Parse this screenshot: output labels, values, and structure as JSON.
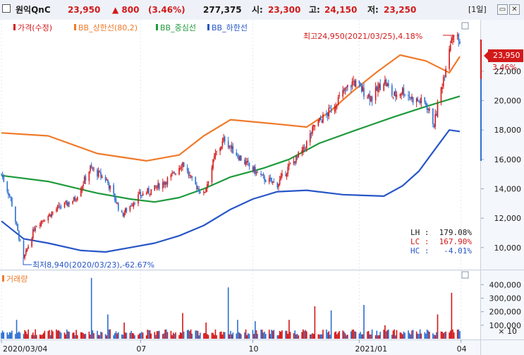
{
  "header": {
    "name": "원익QnC",
    "price": "23,950",
    "change": "▲ 800",
    "pct": "(3.46%)",
    "volume": "277,375",
    "open_label": "시:",
    "open": "23,300",
    "high_label": "고:",
    "high": "24,150",
    "low_label": "저:",
    "low": "23,250",
    "period": "[1일]",
    "colors": {
      "up": "#d3191a",
      "text": "#1a1a1a",
      "low": "#1a5bb5"
    }
  },
  "legend": {
    "price": "가격(수정)",
    "upper": "BB_상한선(80,2)",
    "middle": "BB_중심선",
    "lower": "BB_하한선",
    "volume": "거래량"
  },
  "annotations": {
    "high": "최고24,950(2021/03/25),4.18%",
    "low": "최저8,940(2020/03/23),-62.67%",
    "lh_label": "LH :",
    "lh_value": "179.08%",
    "lc_label": "LC :",
    "lc_value": "167.90%",
    "hc_label": "HC :",
    "hc_value": "-4.01%",
    "current_price": "23,950",
    "current_pct": "3.46%",
    "vol_unit": "× 10"
  },
  "chart_data": [
    {
      "type": "line",
      "title": "",
      "series_names": [
        "가격(수정)",
        "BB_상한선(80,2)",
        "BB_중심선",
        "BB_하한선"
      ],
      "series_colors": {
        "up": "#d3191a",
        "down": "#2f6fd0",
        "upper": "#ef7a2a",
        "middle": "#1f9a3c",
        "lower": "#2756c8"
      },
      "x_ticks": [
        "2020/03/04",
        "07",
        "10",
        "2021/01",
        "04"
      ],
      "y_ticks": [
        "10,000",
        "12,000",
        "14,000",
        "16,000",
        "18,000",
        "20,000",
        "22,000"
      ],
      "ylim": [
        8500,
        25500
      ],
      "price_keypoints": [
        {
          "date": "2020/03/04",
          "close": 15000
        },
        {
          "date": "2020/03/12",
          "close": 13300
        },
        {
          "date": "2020/03/23",
          "close": 9200
        },
        {
          "date": "2020/04/02",
          "close": 11500
        },
        {
          "date": "2020/04/20",
          "close": 12600
        },
        {
          "date": "2020/05/06",
          "close": 13300
        },
        {
          "date": "2020/05/19",
          "close": 15400
        },
        {
          "date": "2020/06/02",
          "close": 14600
        },
        {
          "date": "2020/06/15",
          "close": 12200
        },
        {
          "date": "2020/06/29",
          "close": 13500
        },
        {
          "date": "2020/07/13",
          "close": 14000
        },
        {
          "date": "2020/07/27",
          "close": 14800
        },
        {
          "date": "2020/08/06",
          "close": 15800
        },
        {
          "date": "2020/08/14",
          "close": 14500
        },
        {
          "date": "2020/08/24",
          "close": 13600
        },
        {
          "date": "2020/09/03",
          "close": 16300
        },
        {
          "date": "2020/09/11",
          "close": 17400
        },
        {
          "date": "2020/09/17",
          "close": 16700
        },
        {
          "date": "2020/09/28",
          "close": 15800
        },
        {
          "date": "2020/10/14",
          "close": 14700
        },
        {
          "date": "2020/10/26",
          "close": 14300
        },
        {
          "date": "2020/11/05",
          "close": 15500
        },
        {
          "date": "2020/11/17",
          "close": 16600
        },
        {
          "date": "2020/11/27",
          "close": 18300
        },
        {
          "date": "2020/12/09",
          "close": 19200
        },
        {
          "date": "2020/12/21",
          "close": 20500
        },
        {
          "date": "2020/12/30",
          "close": 21300
        },
        {
          "date": "2021/01/08",
          "close": 20600
        },
        {
          "date": "2021/01/15",
          "close": 20200
        },
        {
          "date": "2021/01/25",
          "close": 21400
        },
        {
          "date": "2021/02/02",
          "close": 20300
        },
        {
          "date": "2021/02/10",
          "close": 20700
        },
        {
          "date": "2021/02/19",
          "close": 20100
        },
        {
          "date": "2021/03/02",
          "close": 19800
        },
        {
          "date": "2021/03/09",
          "close": 18400
        },
        {
          "date": "2021/03/16",
          "close": 21200
        },
        {
          "date": "2021/03/22",
          "close": 23700
        },
        {
          "date": "2021/03/25",
          "close": 24700
        },
        {
          "date": "2021/03/31",
          "close": 23950
        }
      ],
      "bb_upper": [
        {
          "date": "2020/03/04",
          "value": 17800
        },
        {
          "date": "2020/04/13",
          "value": 17600
        },
        {
          "date": "2020/05/25",
          "value": 16400
        },
        {
          "date": "2020/07/06",
          "value": 15900
        },
        {
          "date": "2020/08/03",
          "value": 16300
        },
        {
          "date": "2020/08/24",
          "value": 17600
        },
        {
          "date": "2020/09/16",
          "value": 18700
        },
        {
          "date": "2020/10/26",
          "value": 18400
        },
        {
          "date": "2020/11/20",
          "value": 18200
        },
        {
          "date": "2020/12/09",
          "value": 19200
        },
        {
          "date": "2020/12/29",
          "value": 20600
        },
        {
          "date": "2021/01/20",
          "value": 22000
        },
        {
          "date": "2021/02/08",
          "value": 23100
        },
        {
          "date": "2021/03/02",
          "value": 22700
        },
        {
          "date": "2021/03/22",
          "value": 21900
        },
        {
          "date": "2021/03/31",
          "value": 23000
        }
      ],
      "bb_middle": [
        {
          "date": "2020/03/04",
          "value": 14900
        },
        {
          "date": "2020/04/13",
          "value": 14500
        },
        {
          "date": "2020/05/25",
          "value": 13700
        },
        {
          "date": "2020/06/22",
          "value": 13300
        },
        {
          "date": "2020/07/13",
          "value": 13100
        },
        {
          "date": "2020/08/03",
          "value": 13400
        },
        {
          "date": "2020/08/24",
          "value": 14000
        },
        {
          "date": "2020/09/16",
          "value": 14800
        },
        {
          "date": "2020/10/14",
          "value": 15400
        },
        {
          "date": "2020/11/05",
          "value": 16000
        },
        {
          "date": "2020/12/01",
          "value": 17100
        },
        {
          "date": "2021/01/05",
          "value": 18100
        },
        {
          "date": "2021/02/03",
          "value": 18900
        },
        {
          "date": "2021/03/02",
          "value": 19600
        },
        {
          "date": "2021/03/31",
          "value": 20300
        }
      ],
      "bb_lower": [
        {
          "date": "2020/03/04",
          "value": 11800
        },
        {
          "date": "2020/03/23",
          "value": 10600
        },
        {
          "date": "2020/04/13",
          "value": 10300
        },
        {
          "date": "2020/05/11",
          "value": 9800
        },
        {
          "date": "2020/06/01",
          "value": 9700
        },
        {
          "date": "2020/06/22",
          "value": 10000
        },
        {
          "date": "2020/07/13",
          "value": 10300
        },
        {
          "date": "2020/08/03",
          "value": 10800
        },
        {
          "date": "2020/08/24",
          "value": 11500
        },
        {
          "date": "2020/09/16",
          "value": 12600
        },
        {
          "date": "2020/10/05",
          "value": 13300
        },
        {
          "date": "2020/10/26",
          "value": 13800
        },
        {
          "date": "2020/11/20",
          "value": 13900
        },
        {
          "date": "2020/12/21",
          "value": 13600
        },
        {
          "date": "2021/01/25",
          "value": 13500
        },
        {
          "date": "2021/02/10",
          "value": 14200
        },
        {
          "date": "2021/02/24",
          "value": 15200
        },
        {
          "date": "2021/03/09",
          "value": 16600
        },
        {
          "date": "2021/03/22",
          "value": 18000
        },
        {
          "date": "2021/03/31",
          "value": 17900
        }
      ],
      "price_high": {
        "date": "2021/03/25",
        "value": 24950
      },
      "price_low": {
        "date": "2020/03/23",
        "value": 8940
      }
    },
    {
      "type": "bar",
      "title": "거래량",
      "y_ticks": [
        "100,000",
        "200,000",
        "300,000",
        "400,000"
      ],
      "unit": "× 10",
      "ylim": [
        0,
        480000
      ],
      "volume_spikes": [
        {
          "date": "2020/03/05",
          "value": 60000
        },
        {
          "date": "2020/03/17",
          "value": 140000
        },
        {
          "date": "2020/04/02",
          "value": 70000
        },
        {
          "date": "2020/05/20",
          "value": 450000
        },
        {
          "date": "2020/06/03",
          "value": 180000
        },
        {
          "date": "2020/06/17",
          "value": 120000
        },
        {
          "date": "2020/08/06",
          "value": 190000
        },
        {
          "date": "2020/08/26",
          "value": 120000
        },
        {
          "date": "2020/09/14",
          "value": 380000
        },
        {
          "date": "2020/09/22",
          "value": 140000
        },
        {
          "date": "2020/10/07",
          "value": 130000
        },
        {
          "date": "2020/11/05",
          "value": 140000
        },
        {
          "date": "2020/11/27",
          "value": 240000
        },
        {
          "date": "2020/12/11",
          "value": 210000
        },
        {
          "date": "2021/01/08",
          "value": 250000
        },
        {
          "date": "2021/01/26",
          "value": 100000
        },
        {
          "date": "2021/03/12",
          "value": 180000
        },
        {
          "date": "2021/03/24",
          "value": 340000
        }
      ]
    }
  ]
}
